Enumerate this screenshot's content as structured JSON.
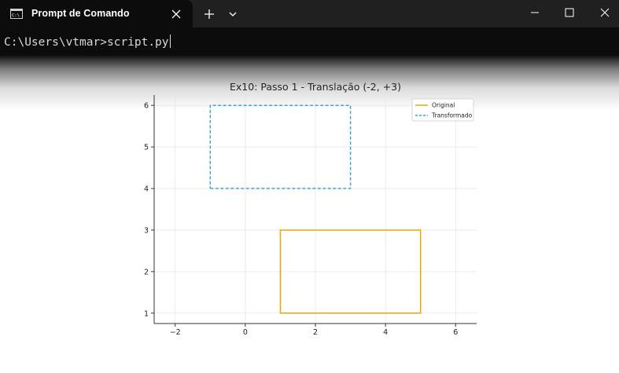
{
  "window": {
    "tab_title": "Prompt de Comando",
    "icons": {
      "app": "terminal-icon",
      "close_tab": "close-icon",
      "new_tab": "plus-icon",
      "dropdown": "chevron-down-icon",
      "minimize": "minimize-icon",
      "maximize": "maximize-icon",
      "close_window": "close-icon"
    }
  },
  "console": {
    "prompt_text": "C:\\Users\\vtmar>script.py"
  },
  "chart_data": {
    "type": "line",
    "title": "Ex10: Passo 1 - Translação (-2, +3)",
    "xlabel": "",
    "ylabel": "",
    "xlim": [
      -2.6,
      6.6
    ],
    "ylim": [
      0.75,
      6.25
    ],
    "xticks": [
      -2,
      0,
      2,
      4,
      6
    ],
    "yticks": [
      1,
      2,
      3,
      4,
      5,
      6
    ],
    "xtick_labels": [
      "−2",
      "0",
      "2",
      "4",
      "6"
    ],
    "ytick_labels": [
      "1",
      "2",
      "3",
      "4",
      "5",
      "6"
    ],
    "grid": true,
    "legend_position": "top-right",
    "series": [
      {
        "name": "Original",
        "color": "#f5a300",
        "style": "solid",
        "x": [
          1,
          5,
          5,
          1,
          1
        ],
        "y": [
          1,
          1,
          3,
          3,
          1
        ]
      },
      {
        "name": "Transformado",
        "color": "#3aa3e0",
        "style": "dashed",
        "x": [
          -1,
          3,
          3,
          -1,
          -1
        ],
        "y": [
          4,
          4,
          6,
          6,
          4
        ]
      }
    ]
  }
}
